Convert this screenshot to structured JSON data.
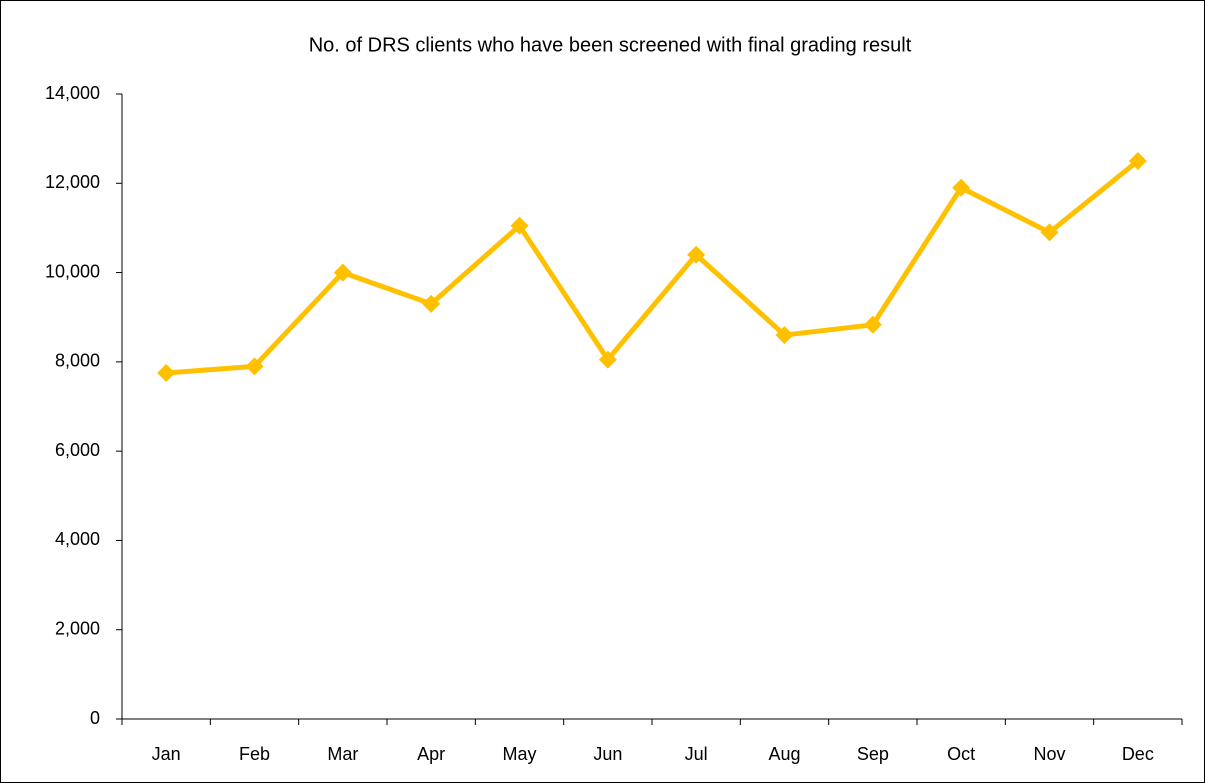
{
  "chart_data": {
    "type": "line",
    "title": "No. of DRS clients who have been screened with final grading result",
    "categories": [
      "Jan",
      "Feb",
      "Mar",
      "Apr",
      "May",
      "Jun",
      "Jul",
      "Aug",
      "Sep",
      "Oct",
      "Nov",
      "Dec"
    ],
    "values": [
      7750,
      7900,
      10000,
      9300,
      11050,
      8050,
      10400,
      8600,
      8830,
      11900,
      10900,
      12500
    ],
    "color": "#FFC000",
    "ylim": [
      0,
      14000
    ],
    "yticks": [
      0,
      {
        "value": 2000,
        "label": "2,000"
      },
      {
        "value": 4000,
        "label": "4,000"
      },
      {
        "value": 6000,
        "label": "6,000"
      },
      {
        "value": 8000,
        "label": "8,000"
      },
      {
        "value": 10000,
        "label": "10,000"
      },
      {
        "value": 12000,
        "label": "12,000"
      },
      {
        "value": 14000,
        "label": "14,000"
      }
    ],
    "grid": false
  }
}
